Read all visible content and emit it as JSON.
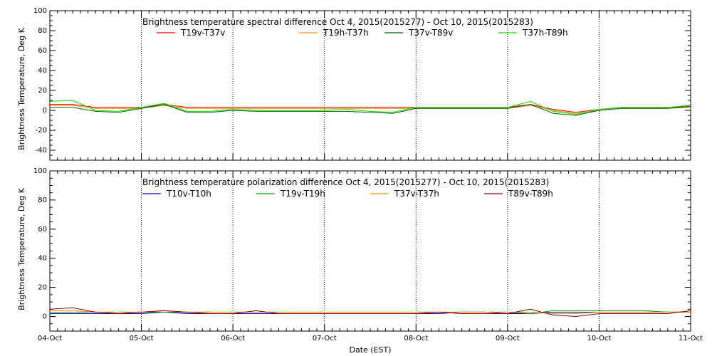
{
  "x_axis": {
    "label": "Date (EST)",
    "ticks": [
      "04-Oct",
      "05-Oct",
      "06-Oct",
      "07-Oct",
      "08-Oct",
      "09-Oct",
      "10-Oct",
      "11-Oct"
    ]
  },
  "chart_data": [
    {
      "type": "line",
      "title": "Brightness temperature spectral difference     Oct  4, 2015(2015277) - Oct 10, 2015(2015283)",
      "ylabel": "Brightness Temperature, Deg K",
      "ylim": [
        -50,
        100
      ],
      "yticks": [
        -40,
        -20,
        0,
        20,
        40,
        60,
        80,
        100
      ],
      "xlim": [
        0,
        7
      ],
      "grid": "vertical dotted at each day",
      "legend_position": "top",
      "x": [
        0,
        0.25,
        0.5,
        0.75,
        1,
        1.25,
        1.5,
        1.75,
        2,
        2.25,
        2.5,
        2.75,
        3,
        3.25,
        3.5,
        3.75,
        4,
        4.25,
        4.5,
        4.75,
        5,
        5.25,
        5.5,
        5.75,
        6,
        6.25,
        6.5,
        6.75,
        7
      ],
      "series": [
        {
          "name": "T19v-T37v",
          "color": "#ff0000",
          "values": [
            6,
            6,
            3,
            3,
            3,
            6,
            3,
            3,
            3,
            3,
            3,
            3,
            3,
            3,
            3,
            3,
            3,
            3,
            3,
            3,
            3,
            6,
            1,
            -2,
            1,
            3,
            3,
            3,
            4
          ]
        },
        {
          "name": "T19h-T37h",
          "color": "#ff8c00",
          "values": [
            5,
            5,
            2,
            2,
            2,
            5,
            2,
            2,
            2,
            2,
            2,
            2,
            2,
            2,
            2,
            2,
            2,
            2,
            2,
            2,
            2,
            5,
            0,
            -3,
            0,
            2,
            2,
            2,
            3
          ]
        },
        {
          "name": "T37v-T89v",
          "color": "#006400",
          "values": [
            3,
            3,
            -1,
            -2,
            2,
            6,
            -2,
            -2,
            0,
            -1,
            -1,
            -1,
            -1,
            -1,
            -2,
            -3,
            2,
            2,
            2,
            2,
            2,
            6,
            -3,
            -5,
            0,
            2,
            2,
            2,
            4
          ]
        },
        {
          "name": "T37h-T89h",
          "color": "#00e000",
          "values": [
            9,
            10,
            0,
            -1,
            3,
            7,
            -1,
            -1,
            1,
            0,
            0,
            0,
            0,
            1,
            -1,
            -2,
            3,
            3,
            3,
            3,
            3,
            9,
            -1,
            -4,
            1,
            3,
            3,
            3,
            5
          ]
        }
      ]
    },
    {
      "type": "line",
      "title": "Brightness temperature polarization difference     Oct  4, 2015(2015277) - Oct 10, 2015(2015283)",
      "ylabel": "Brightness Temperature, Deg K",
      "ylim": [
        -10,
        100
      ],
      "yticks": [
        0,
        20,
        40,
        60,
        80,
        100
      ],
      "xlim": [
        0,
        7
      ],
      "grid": "vertical dotted at each day",
      "legend_position": "top",
      "x": [
        0,
        0.25,
        0.5,
        0.75,
        1,
        1.25,
        1.5,
        1.75,
        2,
        2.25,
        2.5,
        2.75,
        3,
        3.25,
        3.5,
        3.75,
        4,
        4.25,
        4.5,
        4.75,
        5,
        5.25,
        5.5,
        5.75,
        6,
        6.25,
        6.5,
        6.75,
        7
      ],
      "series": [
        {
          "name": "T10v-T10h",
          "color": "#0000cd",
          "values": [
            2,
            2,
            2,
            2,
            2,
            3,
            2,
            2,
            2,
            2,
            2,
            2,
            2,
            2,
            2,
            2,
            2,
            2,
            3,
            3,
            2,
            2,
            3,
            3,
            3,
            3,
            3,
            3,
            3
          ]
        },
        {
          "name": "T19v-T19h",
          "color": "#00a000",
          "values": [
            3,
            3,
            3,
            3,
            3,
            3,
            3,
            3,
            3,
            3,
            3,
            3,
            3,
            3,
            3,
            3,
            3,
            3,
            3,
            3,
            3,
            2,
            4,
            4,
            4,
            4,
            4,
            3,
            3
          ]
        },
        {
          "name": "T37v-T37h",
          "color": "#ff8c00",
          "values": [
            4,
            4,
            3,
            3,
            3,
            4,
            3,
            3,
            3,
            3,
            3,
            3,
            3,
            3,
            3,
            3,
            3,
            3,
            3,
            3,
            3,
            3,
            2,
            2,
            3,
            3,
            3,
            3,
            3
          ]
        },
        {
          "name": "T89v-T89h",
          "color": "#8b0000",
          "values": [
            5,
            6,
            3,
            2,
            3,
            4,
            3,
            2,
            2,
            4,
            2,
            2,
            2,
            2,
            2,
            2,
            2,
            3,
            2,
            2,
            2,
            5,
            1,
            0,
            2,
            2,
            2,
            2,
            4
          ]
        }
      ]
    }
  ]
}
